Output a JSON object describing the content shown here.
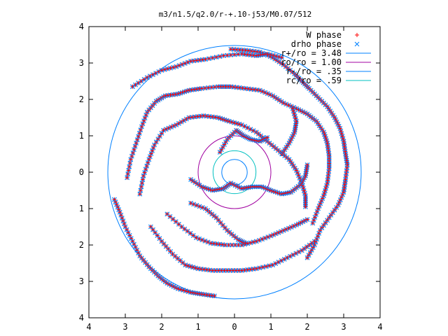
{
  "chart_data": {
    "type": "scatter",
    "title": "m3/n1.5/q2.0/r-+.10-j53/M0.07/512",
    "xlabel": "",
    "ylabel": "",
    "xlim": [
      -4,
      4
    ],
    "ylim": [
      -4,
      4
    ],
    "x_tick_labels": [
      "4",
      "3",
      "2",
      "1",
      "0",
      "1",
      "2",
      "3",
      "4"
    ],
    "y_tick_labels": [
      "4",
      "3",
      "2",
      "1",
      "0",
      "1",
      "2",
      "3",
      "4"
    ],
    "x_tick_values": [
      -4,
      -3,
      -2,
      -1,
      0,
      1,
      2,
      3,
      4
    ],
    "y_tick_values": [
      4,
      3,
      2,
      1,
      0,
      -1,
      -2,
      -3,
      -4
    ],
    "grid": false,
    "legend_position": "top-right",
    "series": [
      {
        "name": "W phase",
        "kind": "points",
        "marker": "plus",
        "color": "#ff0000"
      },
      {
        "name": "drho phase",
        "kind": "points",
        "marker": "cross",
        "color": "#0080ff"
      },
      {
        "name": "r+/ro = 3.48",
        "kind": "circle",
        "radius": 3.48,
        "color": "#0080ff"
      },
      {
        "name": "ro/ro = 1.00",
        "kind": "circle",
        "radius": 1.0,
        "color": "#a000a0"
      },
      {
        "name": "r-/ro = .35",
        "kind": "circle",
        "radius": 0.35,
        "color": "#0080ff"
      },
      {
        "name": "rc/ro = .59",
        "kind": "circle",
        "radius": 0.59,
        "color": "#00c0c0"
      }
    ],
    "spiral_arms": [
      [
        [
          -0.1,
          3.38
        ],
        [
          0.3,
          3.35
        ],
        [
          0.7,
          3.3
        ],
        [
          1.05,
          3.15
        ],
        [
          1.35,
          2.95
        ],
        [
          1.65,
          2.7
        ],
        [
          1.85,
          2.5
        ],
        [
          2.05,
          2.3
        ],
        [
          2.3,
          2.05
        ],
        [
          2.55,
          1.8
        ],
        [
          2.75,
          1.5
        ],
        [
          2.9,
          1.2
        ],
        [
          3.0,
          0.85
        ],
        [
          3.05,
          0.5
        ],
        [
          3.1,
          0.2
        ],
        [
          3.05,
          -0.2
        ],
        [
          3.0,
          -0.55
        ],
        [
          2.85,
          -0.9
        ],
        [
          2.6,
          -1.25
        ],
        [
          2.35,
          -1.6
        ],
        [
          2.2,
          -2.0
        ],
        [
          2.0,
          -2.35
        ]
      ],
      [
        [
          -2.8,
          2.35
        ],
        [
          -2.4,
          2.6
        ],
        [
          -2.0,
          2.8
        ],
        [
          -1.6,
          2.9
        ],
        [
          -1.2,
          3.05
        ],
        [
          -0.8,
          3.1
        ],
        [
          -0.3,
          3.2
        ],
        [
          0.2,
          3.25
        ],
        [
          0.6,
          3.2
        ],
        [
          0.9,
          3.25
        ],
        [
          1.3,
          3.15
        ]
      ],
      [
        [
          -3.3,
          -0.75
        ],
        [
          -3.15,
          -1.1
        ],
        [
          -3.0,
          -1.5
        ],
        [
          -2.8,
          -1.9
        ],
        [
          -2.6,
          -2.3
        ],
        [
          -2.35,
          -2.6
        ],
        [
          -2.1,
          -2.85
        ],
        [
          -1.85,
          -3.05
        ],
        [
          -1.55,
          -3.2
        ],
        [
          -1.2,
          -3.3
        ],
        [
          -0.9,
          -3.35
        ],
        [
          -0.55,
          -3.4
        ]
      ],
      [
        [
          -2.95,
          -0.15
        ],
        [
          -2.85,
          0.35
        ],
        [
          -2.7,
          0.8
        ],
        [
          -2.55,
          1.25
        ],
        [
          -2.4,
          1.65
        ],
        [
          -2.15,
          1.95
        ],
        [
          -1.9,
          2.1
        ],
        [
          -1.55,
          2.15
        ],
        [
          -1.25,
          2.25
        ],
        [
          -0.9,
          2.3
        ],
        [
          -0.45,
          2.35
        ],
        [
          -0.1,
          2.35
        ],
        [
          0.3,
          2.3
        ],
        [
          0.7,
          2.25
        ],
        [
          1.05,
          2.1
        ],
        [
          1.35,
          1.9
        ],
        [
          1.7,
          1.75
        ],
        [
          2.0,
          1.6
        ],
        [
          2.25,
          1.4
        ],
        [
          2.45,
          1.1
        ],
        [
          2.55,
          0.8
        ],
        [
          2.6,
          0.45
        ],
        [
          2.6,
          0.1
        ],
        [
          2.55,
          -0.3
        ],
        [
          2.45,
          -0.65
        ],
        [
          2.3,
          -1.0
        ],
        [
          2.15,
          -1.4
        ]
      ],
      [
        [
          -2.3,
          -1.5
        ],
        [
          -2.0,
          -1.9
        ],
        [
          -1.7,
          -2.25
        ],
        [
          -1.35,
          -2.55
        ],
        [
          -1.0,
          -2.65
        ],
        [
          -0.6,
          -2.7
        ],
        [
          -0.2,
          -2.7
        ],
        [
          0.2,
          -2.7
        ],
        [
          0.6,
          -2.65
        ],
        [
          1.05,
          -2.55
        ],
        [
          1.45,
          -2.35
        ],
        [
          1.85,
          -2.15
        ],
        [
          2.2,
          -1.9
        ]
      ],
      [
        [
          -2.6,
          -0.6
        ],
        [
          -2.5,
          -0.1
        ],
        [
          -2.35,
          0.35
        ],
        [
          -2.2,
          0.75
        ],
        [
          -1.95,
          1.15
        ],
        [
          -1.6,
          1.3
        ],
        [
          -1.25,
          1.5
        ],
        [
          -0.85,
          1.55
        ],
        [
          -0.45,
          1.5
        ],
        [
          -0.15,
          1.4
        ],
        [
          0.2,
          1.3
        ],
        [
          0.6,
          1.1
        ],
        [
          0.9,
          0.85
        ],
        [
          1.2,
          0.6
        ],
        [
          1.5,
          0.35
        ],
        [
          1.7,
          0.05
        ],
        [
          1.85,
          -0.3
        ],
        [
          1.95,
          -0.65
        ],
        [
          1.95,
          -0.95
        ]
      ],
      [
        [
          -1.85,
          -1.15
        ],
        [
          -1.45,
          -1.5
        ],
        [
          -1.05,
          -1.8
        ],
        [
          -0.65,
          -1.95
        ],
        [
          -0.25,
          -2.0
        ],
        [
          0.2,
          -2.0
        ],
        [
          0.6,
          -1.9
        ],
        [
          1.0,
          -1.75
        ],
        [
          1.35,
          -1.6
        ],
        [
          1.7,
          -1.45
        ],
        [
          2.0,
          -1.3
        ]
      ],
      [
        [
          -1.2,
          -0.85
        ],
        [
          -0.8,
          -1.0
        ],
        [
          -0.5,
          -1.25
        ],
        [
          -0.2,
          -1.6
        ],
        [
          0.1,
          -1.85
        ],
        [
          0.3,
          -1.95
        ]
      ],
      [
        [
          -1.2,
          -0.2
        ],
        [
          -0.9,
          -0.4
        ],
        [
          -0.6,
          -0.5
        ],
        [
          -0.3,
          -0.45
        ],
        [
          -0.1,
          -0.3
        ],
        [
          0.2,
          -0.45
        ],
        [
          0.5,
          -0.4
        ],
        [
          0.75,
          -0.4
        ],
        [
          1.0,
          -0.5
        ],
        [
          1.3,
          -0.6
        ],
        [
          1.55,
          -0.55
        ],
        [
          1.8,
          -0.35
        ],
        [
          1.95,
          -0.1
        ],
        [
          2.0,
          0.2
        ]
      ],
      [
        [
          1.3,
          0.5
        ],
        [
          1.5,
          0.8
        ],
        [
          1.65,
          1.1
        ],
        [
          1.7,
          1.4
        ],
        [
          1.6,
          1.75
        ]
      ],
      [
        [
          -0.4,
          0.55
        ],
        [
          -0.2,
          0.9
        ],
        [
          0.05,
          1.15
        ],
        [
          0.25,
          1.0
        ],
        [
          0.45,
          0.9
        ],
        [
          0.7,
          0.85
        ],
        [
          0.9,
          0.95
        ]
      ]
    ]
  }
}
